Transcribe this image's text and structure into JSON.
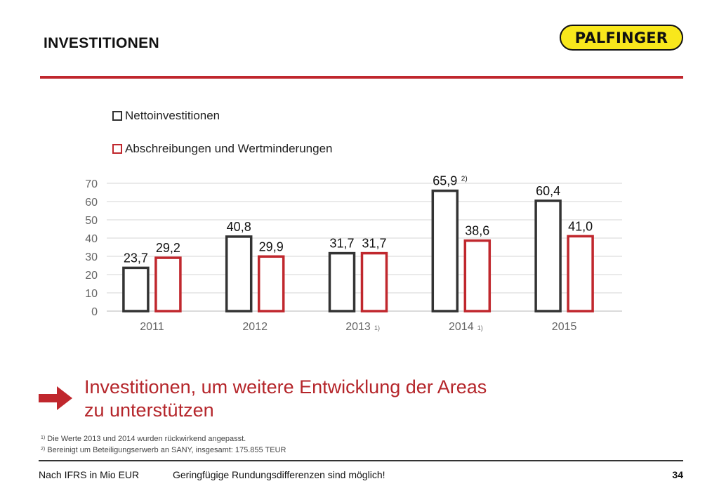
{
  "header": {
    "title": "INVESTITIONEN",
    "logo_text": "PALFINGER",
    "logo_color": "#f8e71c",
    "accent_color": "#c0272d"
  },
  "chart_data": {
    "type": "bar",
    "title": "",
    "xlabel": "",
    "ylabel": "",
    "ylim": [
      0,
      70
    ],
    "yticks": [
      "0",
      "10",
      "20",
      "30",
      "40",
      "50",
      "60",
      "70"
    ],
    "grid": true,
    "legend_position": "top-left",
    "categories": [
      "2011",
      "2012",
      "2013",
      "2014",
      "2015"
    ],
    "category_notes": [
      "",
      "",
      "1)",
      "1)",
      ""
    ],
    "series": [
      {
        "name": "Nettoinvestitionen",
        "color": "#333333",
        "values": [
          23.7,
          40.8,
          31.7,
          65.9,
          60.4
        ],
        "labels": [
          "23,7",
          "40,8",
          "31,7",
          "65,9",
          "60,4"
        ],
        "label_notes": [
          "",
          "",
          "",
          "2)",
          ""
        ]
      },
      {
        "name": "Abschreibungen und Wertminderungen",
        "color": "#c0272d",
        "values": [
          29.2,
          29.9,
          31.7,
          38.6,
          41.0
        ],
        "labels": [
          "29,2",
          "29,9",
          "31,7",
          "38,6",
          "41,0"
        ],
        "label_notes": [
          "",
          "",
          "",
          "",
          ""
        ]
      }
    ]
  },
  "conclusion": {
    "line1": "Investitionen, um weitere Entwicklung der Areas",
    "line2": "zu unterstützen"
  },
  "footnotes": [
    {
      "mark": "1)",
      "text": "Die Werte 2013 und 2014 wurden rückwirkend angepasst."
    },
    {
      "mark": "2)",
      "text": "Bereinigt um Beteiligungserwerb an SANY, insgesamt: 175.855 TEUR"
    }
  ],
  "footer": {
    "basis": "Nach IFRS in Mio EUR",
    "disclaimer": "Geringfügige Rundungsdifferenzen sind möglich!",
    "page_number": "34"
  }
}
